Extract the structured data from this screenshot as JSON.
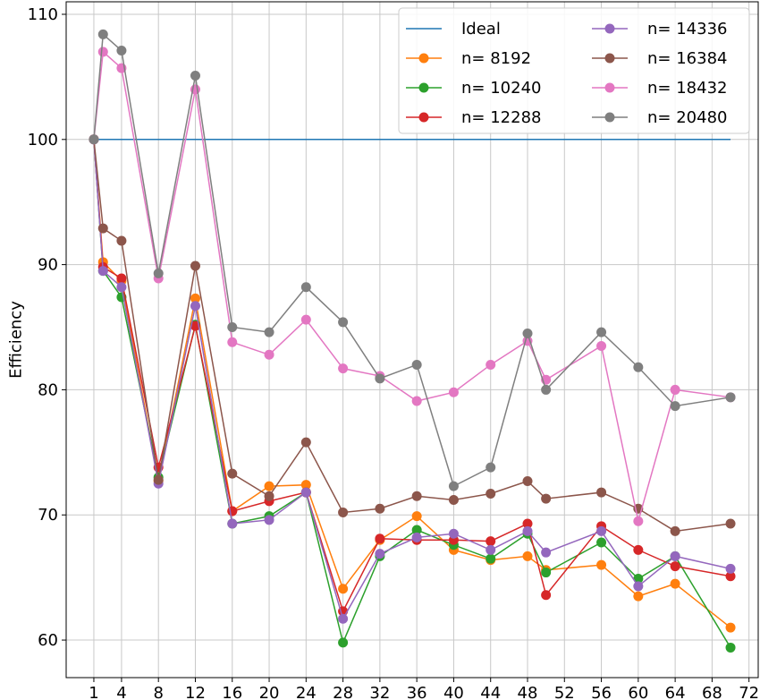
{
  "chart_data": {
    "type": "line",
    "title": "",
    "xlabel": "",
    "ylabel": "Efficiency",
    "xlim": [
      -2,
      73
    ],
    "ylim": [
      57,
      111
    ],
    "grid": true,
    "legend_position": "top-right",
    "legend_columns": 2,
    "x_ticks": [
      1,
      4,
      8,
      12,
      16,
      20,
      24,
      28,
      32,
      36,
      40,
      44,
      48,
      52,
      56,
      60,
      64,
      68,
      72
    ],
    "y_ticks": [
      60,
      70,
      80,
      90,
      100,
      110
    ],
    "x": [
      1,
      2,
      4,
      8,
      12,
      16,
      20,
      24,
      28,
      32,
      36,
      40,
      44,
      48,
      50,
      56,
      60,
      64,
      70
    ],
    "series": [
      {
        "name": "Ideal",
        "color": "#1f77b4",
        "marker": false,
        "x": [
          1,
          70
        ],
        "values": [
          100,
          100
        ]
      },
      {
        "name": "n= 8192",
        "color": "#ff7f0e",
        "marker": true,
        "values": [
          100,
          90.2,
          88.7,
          72.7,
          87.3,
          70.3,
          72.3,
          72.4,
          64.1,
          68.0,
          69.9,
          67.2,
          66.4,
          66.7,
          65.6,
          66.0,
          63.5,
          64.5,
          61.0
        ]
      },
      {
        "name": "n= 10240",
        "color": "#2ca02c",
        "marker": true,
        "values": [
          100,
          89.5,
          87.4,
          73.0,
          85.2,
          69.3,
          69.9,
          71.8,
          59.8,
          66.7,
          68.8,
          67.6,
          66.5,
          68.5,
          65.4,
          67.8,
          64.9,
          66.7,
          59.4
        ]
      },
      {
        "name": "n= 12288",
        "color": "#d62728",
        "marker": true,
        "values": [
          100,
          89.8,
          88.9,
          73.8,
          85.1,
          70.3,
          71.1,
          71.8,
          62.3,
          68.1,
          68.0,
          68.0,
          67.9,
          69.3,
          63.6,
          69.1,
          67.2,
          65.9,
          65.1
        ]
      },
      {
        "name": "n= 14336",
        "color": "#9467bd",
        "marker": true,
        "values": [
          100,
          89.5,
          88.2,
          72.5,
          86.7,
          69.3,
          69.6,
          71.8,
          61.7,
          66.9,
          68.2,
          68.5,
          67.2,
          68.7,
          67.0,
          68.7,
          64.3,
          66.7,
          65.7
        ]
      },
      {
        "name": "n= 16384",
        "color": "#8c564b",
        "marker": true,
        "values": [
          100,
          92.9,
          91.9,
          72.8,
          89.9,
          73.3,
          71.5,
          75.8,
          70.2,
          70.5,
          71.5,
          71.2,
          71.7,
          72.7,
          71.3,
          71.8,
          70.5,
          68.7,
          69.3
        ]
      },
      {
        "name": "n= 18432",
        "color": "#e377c2",
        "marker": true,
        "values": [
          100,
          107.0,
          105.7,
          88.9,
          104.0,
          83.8,
          82.8,
          85.6,
          81.7,
          81.1,
          79.1,
          79.8,
          82.0,
          83.9,
          80.8,
          83.5,
          69.5,
          80.0,
          79.4
        ]
      },
      {
        "name": "n= 20480",
        "color": "#7f7f7f",
        "marker": true,
        "values": [
          100,
          108.4,
          107.1,
          89.3,
          105.1,
          85.0,
          84.6,
          88.2,
          85.4,
          80.9,
          82.0,
          72.3,
          73.8,
          84.5,
          80.0,
          84.6,
          81.8,
          78.7,
          79.4
        ]
      }
    ]
  }
}
